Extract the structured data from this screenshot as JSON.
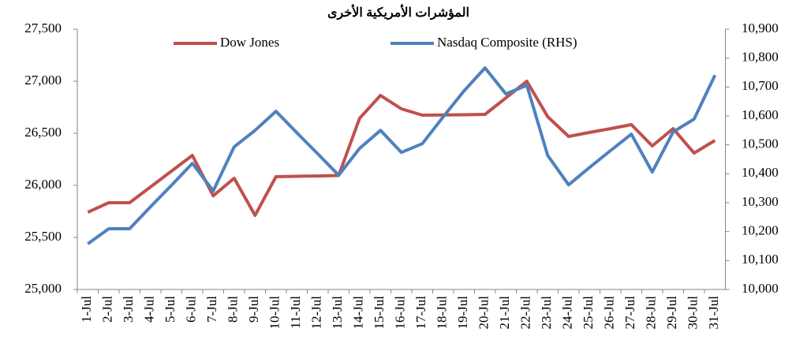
{
  "chart_data": {
    "type": "line",
    "title": "المؤشرات الأمريكية الأخرى",
    "categories": [
      "1-Jul",
      "2-Jul",
      "3-Jul",
      "4-Jul",
      "5-Jul",
      "6-Jul",
      "7-Jul",
      "8-Jul",
      "9-Jul",
      "10-Jul",
      "11-Jul",
      "12-Jul",
      "13-Jul",
      "14-Jul",
      "15-Jul",
      "16-Jul",
      "17-Jul",
      "18-Jul",
      "19-Jul",
      "20-Jul",
      "21-Jul",
      "22-Jul",
      "23-Jul",
      "24-Jul",
      "25-Jul",
      "26-Jul",
      "27-Jul",
      "28-Jul",
      "29-Jul",
      "30-Jul",
      "31-Jul"
    ],
    "series": [
      {
        "name": "Dow Jones",
        "color": "#c0504d",
        "values": [
          25742,
          25833,
          25833,
          25985,
          26136,
          26288,
          25900,
          26068,
          25712,
          26083,
          26087,
          26090,
          26095,
          26644,
          26864,
          26735,
          26674,
          26676,
          26678,
          26682,
          26840,
          27000,
          26659,
          26470,
          26508,
          26545,
          26583,
          26379,
          26545,
          26310,
          26432
        ]
      },
      {
        "name": "Nasdaq Composite (RHS)",
        "color": "#4f81bd",
        "axis": "y2",
        "values": [
          10158,
          10210,
          10210,
          10286,
          10360,
          10436,
          10341,
          10493,
          10550,
          10616,
          10542,
          10469,
          10395,
          10488,
          10550,
          10474,
          10504,
          10597,
          10687,
          10766,
          10676,
          10706,
          10463,
          10362,
          10422,
          10480,
          10537,
          10406,
          10545,
          10589,
          10741
        ]
      }
    ],
    "ylim": [
      25000,
      27500
    ],
    "yticks": [
      {
        "value": 25000,
        "label": "25,000"
      },
      {
        "value": 25500,
        "label": "25,500"
      },
      {
        "value": 26000,
        "label": "26,000"
      },
      {
        "value": 26500,
        "label": "26,500"
      },
      {
        "value": 27000,
        "label": "27,000"
      },
      {
        "value": 27500,
        "label": "27,500"
      }
    ],
    "y2lim": [
      10000,
      10900
    ],
    "y2ticks": [
      {
        "value": 10000,
        "label": "10,000"
      },
      {
        "value": 10100,
        "label": "10,100"
      },
      {
        "value": 10200,
        "label": "10,200"
      },
      {
        "value": 10300,
        "label": "10,300"
      },
      {
        "value": 10400,
        "label": "10,400"
      },
      {
        "value": 10500,
        "label": "10,500"
      },
      {
        "value": 10600,
        "label": "10,600"
      },
      {
        "value": 10700,
        "label": "10,700"
      },
      {
        "value": 10800,
        "label": "10,800"
      },
      {
        "value": 10900,
        "label": "10,900"
      }
    ],
    "legend": "top"
  }
}
